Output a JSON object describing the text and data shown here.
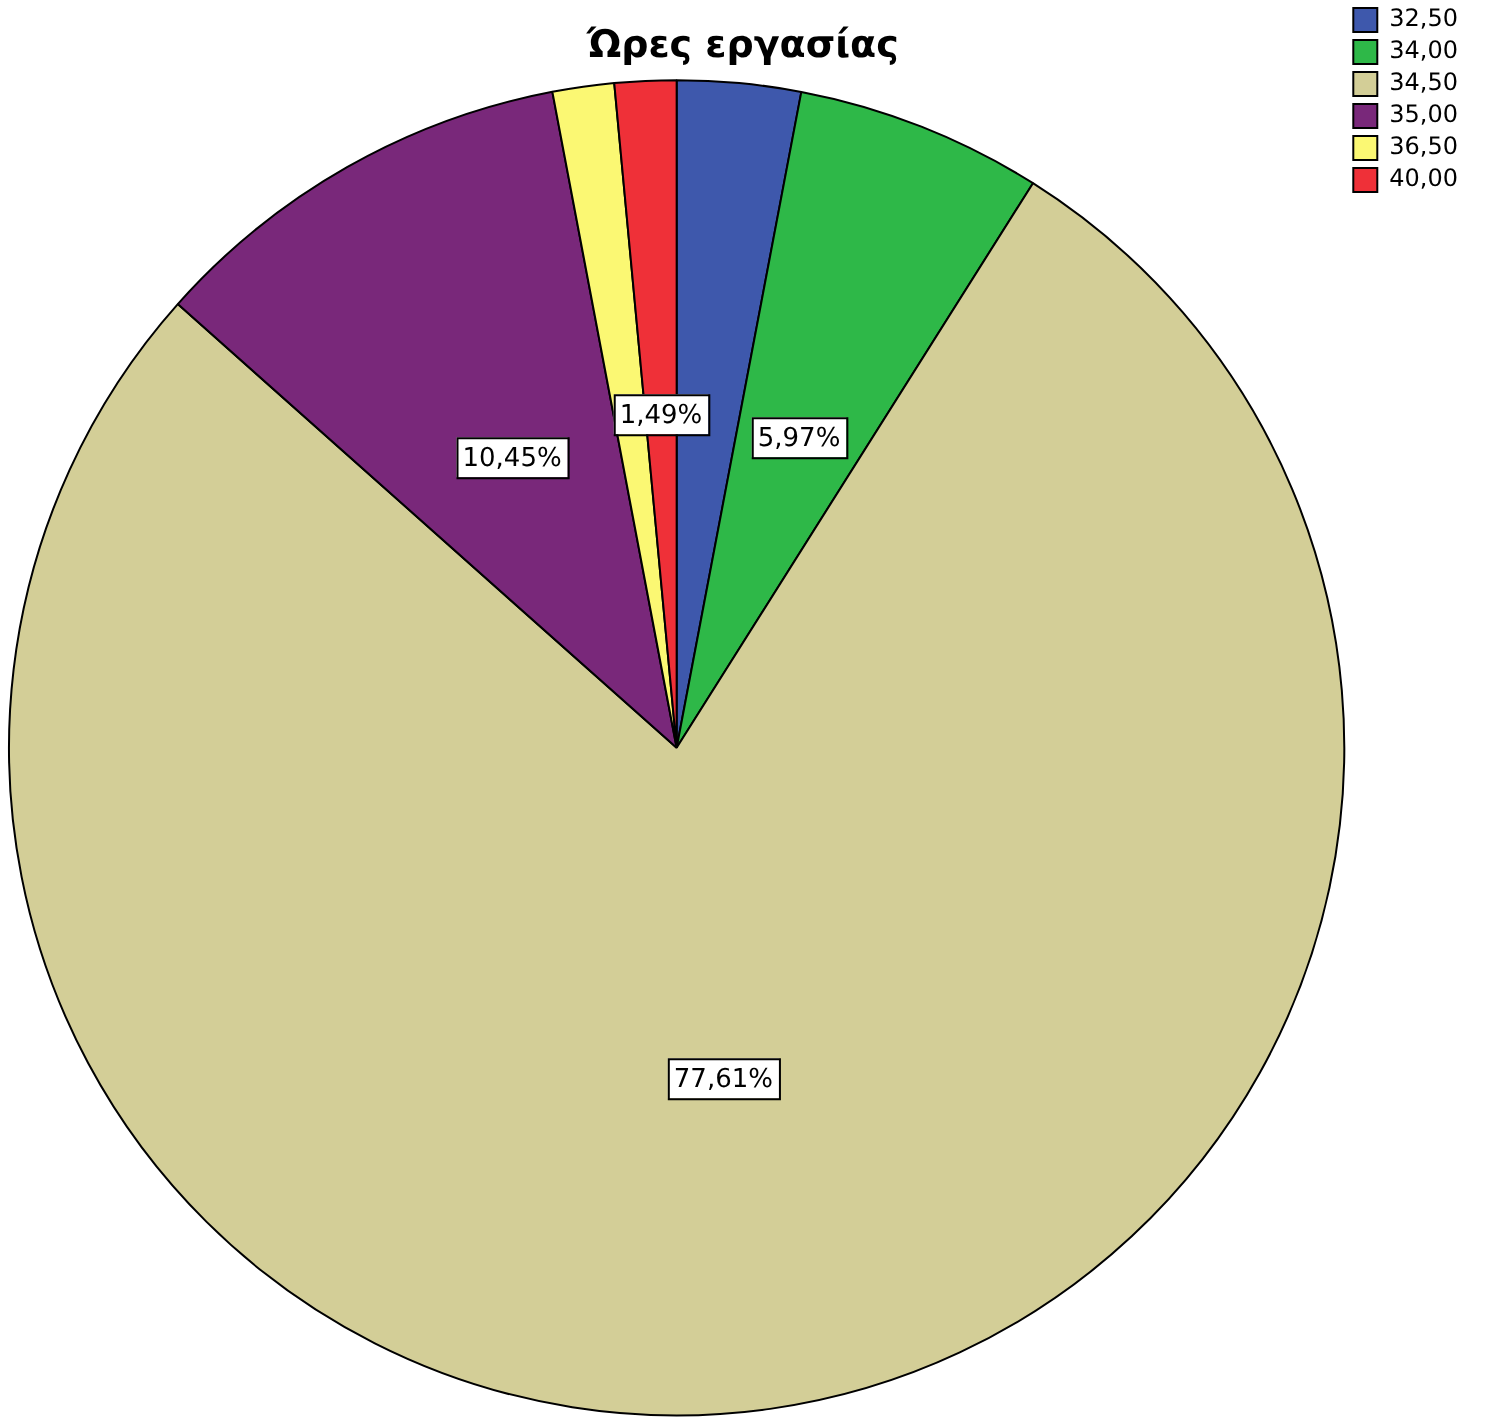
{
  "chart_data": {
    "type": "pie",
    "title": "Ώρες εργασίας",
    "categories": [
      "32,50",
      "34,00",
      "34,50",
      "35,00",
      "36,50",
      "40,00"
    ],
    "values": [
      2.99,
      5.97,
      77.61,
      10.45,
      1.49,
      1.49
    ],
    "value_labels": [
      null,
      "5,97%",
      "77,61%",
      "10,45%",
      null,
      "1,49%"
    ],
    "colors": [
      "#3e58ac",
      "#2eb848",
      "#d3ce97",
      "#79287a",
      "#fbf873",
      "#ef3038"
    ],
    "legend": "top right"
  }
}
